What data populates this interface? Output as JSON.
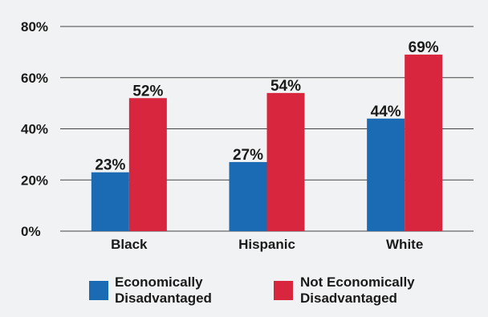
{
  "chart_data": {
    "type": "bar",
    "categories": [
      "Black",
      "Hispanic",
      "White"
    ],
    "series": [
      {
        "name": "Economically Disadvantaged",
        "legend_lines": [
          "Economically",
          "Disadvantaged"
        ],
        "color": "#1a6bb4",
        "values": [
          23,
          27,
          44
        ],
        "labels": [
          "23%",
          "27%",
          "44%"
        ]
      },
      {
        "name": "Not Economically Disadvantaged",
        "legend_lines": [
          "Not Economically",
          "Disadvantaged"
        ],
        "color": "#d7263d",
        "values": [
          52,
          54,
          69
        ],
        "labels": [
          "52%",
          "54%",
          "69%"
        ]
      }
    ],
    "y_ticks": [
      0,
      20,
      40,
      60,
      80
    ],
    "y_tick_labels": [
      "0%",
      "20%",
      "40%",
      "60%",
      "80%"
    ],
    "ylim": [
      0,
      80
    ],
    "grid": true,
    "title": "",
    "xlabel": "",
    "ylabel": "",
    "legend_position": "bottom"
  }
}
